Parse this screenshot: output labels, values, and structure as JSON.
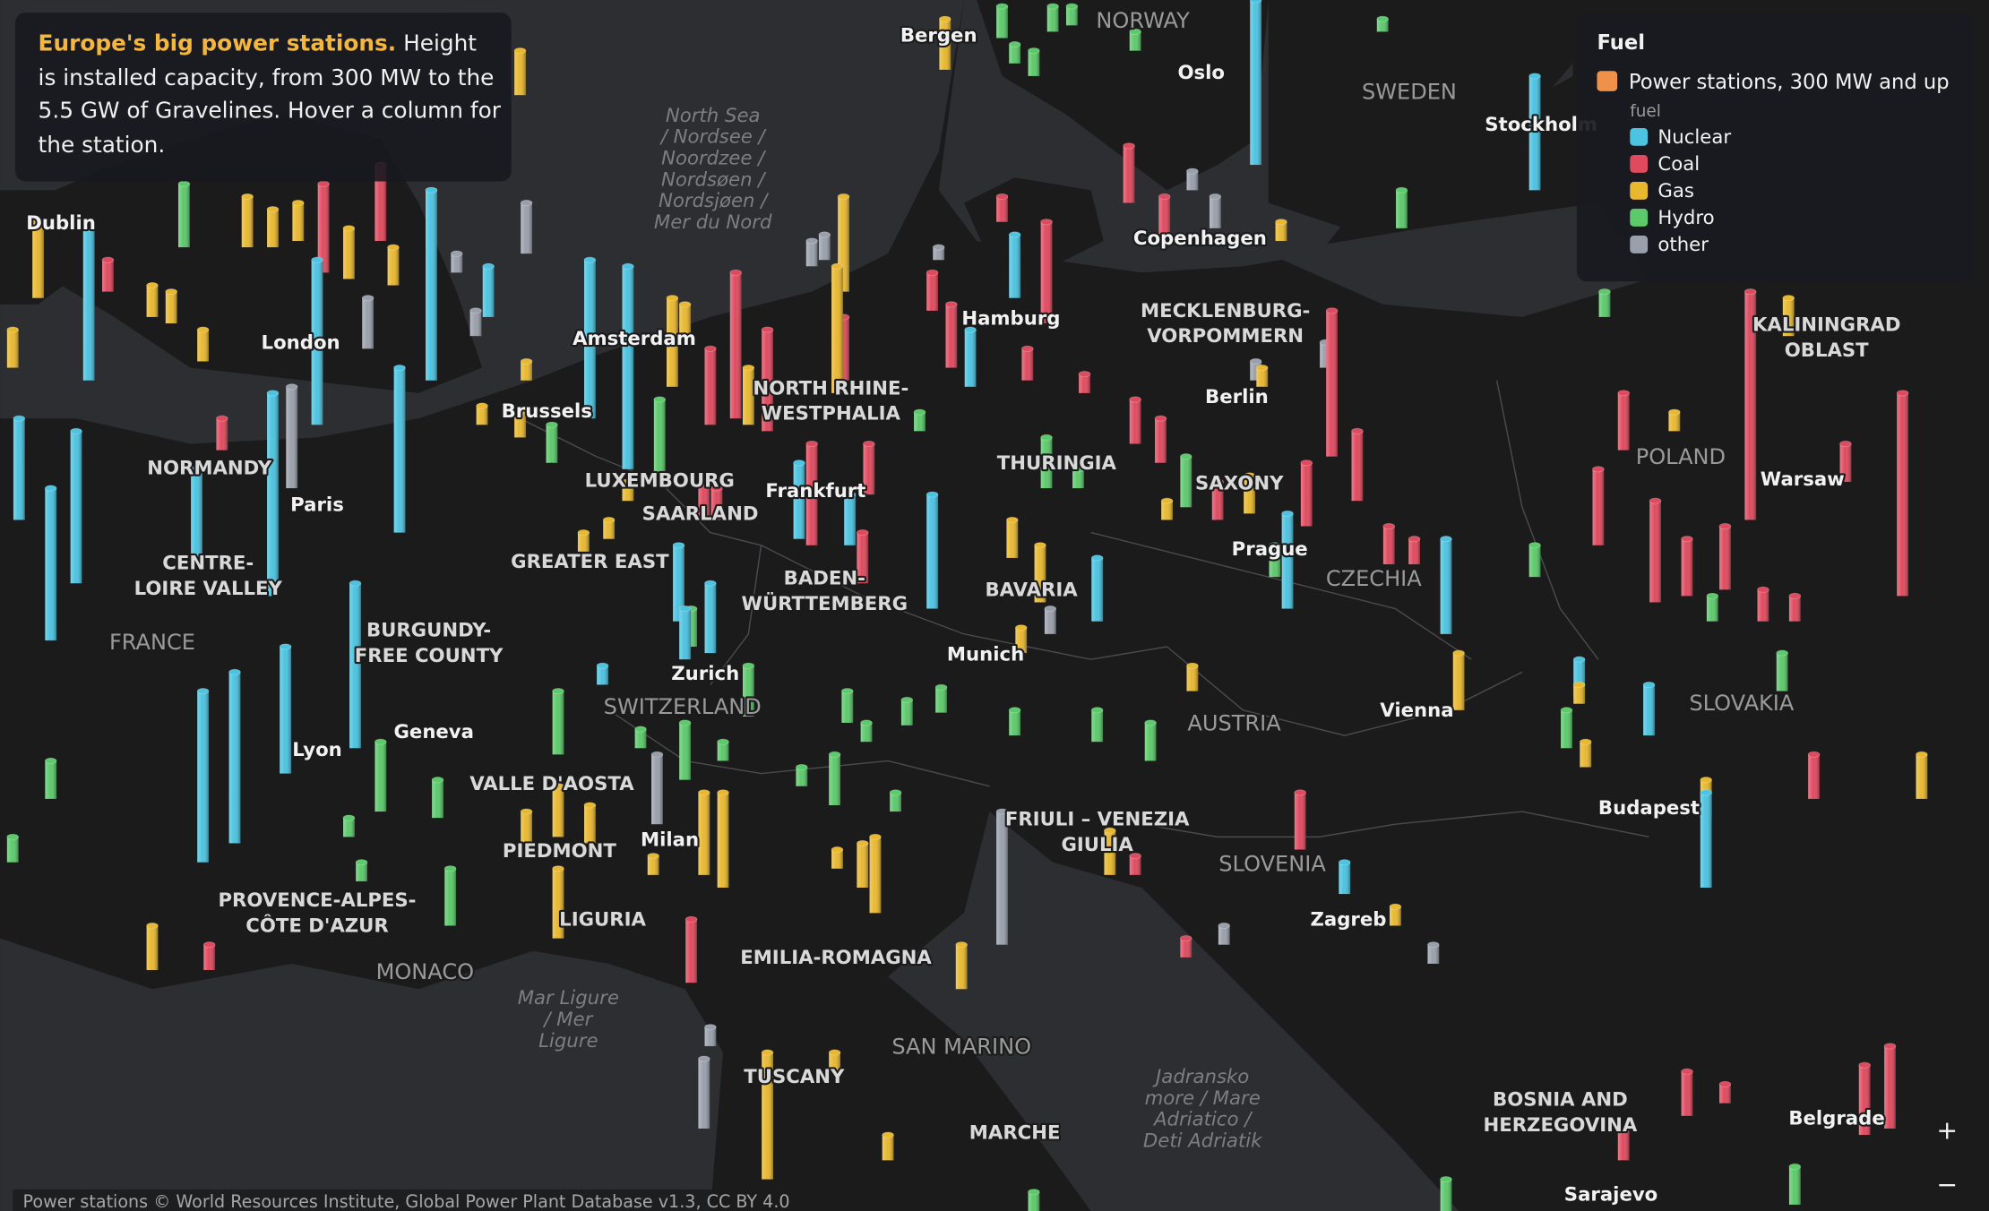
{
  "info": {
    "title": "Europe's big power stations.",
    "text": "Height is installed capacity, from 300 MW to the 5.5 GW of Gravelines. Hover a column for the station."
  },
  "legend": {
    "title": "Fuel",
    "layer": {
      "label": "Power stations, 300 MW and up",
      "color": "#f0914a"
    },
    "group": "fuel",
    "items": [
      {
        "label": "Nuclear",
        "color": "#4cc3e0"
      },
      {
        "label": "Coal",
        "color": "#e04a5f"
      },
      {
        "label": "Gas",
        "color": "#e8b830"
      },
      {
        "label": "Hydro",
        "color": "#5cc96b"
      },
      {
        "label": "other",
        "color": "#9aa0ab"
      }
    ]
  },
  "places": [
    {
      "label": "Bergen"
    },
    {
      "label": "Oslo"
    },
    {
      "label": "NORWAY"
    },
    {
      "label": "SWEDEN"
    },
    {
      "label": "Stockholm"
    },
    {
      "label": "Copenhagen"
    },
    {
      "label": "Hamburg"
    },
    {
      "lines": [
        "MECKLENBURG-",
        "VORPOMMERN"
      ]
    },
    {
      "label": "Berlin"
    },
    {
      "label": "Amsterdam"
    },
    {
      "label": "London"
    },
    {
      "label": "Dublin"
    },
    {
      "label": "Brussels"
    },
    {
      "lines": [
        "NORTH RHINE-",
        "WESTPHALIA"
      ]
    },
    {
      "label": "LUXEMBOURG"
    },
    {
      "label": "SAARLAND"
    },
    {
      "label": "Frankfurt"
    },
    {
      "label": "THURINGIA"
    },
    {
      "label": "SAXONY"
    },
    {
      "label": "Prague"
    },
    {
      "label": "CZECHIA"
    },
    {
      "label": "POLAND"
    },
    {
      "label": "Warsaw"
    },
    {
      "lines": [
        "KALININGRAD",
        "OBLAST"
      ]
    },
    {
      "label": "NORMANDY"
    },
    {
      "label": "Paris"
    },
    {
      "lines": [
        "CENTRE-",
        "LOIRE VALLEY"
      ]
    },
    {
      "label": "FRANCE"
    },
    {
      "label": "GREATER EAST"
    },
    {
      "lines": [
        "BADEN-",
        "WÜRTTEMBERG"
      ]
    },
    {
      "label": "BAVARIA"
    },
    {
      "label": "Munich"
    },
    {
      "label": "Zurich"
    },
    {
      "label": "SWITZERLAND"
    },
    {
      "lines": [
        "BURGUNDY-",
        "FREE COUNTY"
      ]
    },
    {
      "label": "Geneva"
    },
    {
      "label": "Lyon"
    },
    {
      "label": "AUSTRIA"
    },
    {
      "label": "Vienna"
    },
    {
      "label": "SLOVAKIA"
    },
    {
      "label": "Budapest"
    },
    {
      "label": "VALLE D'AOSTA"
    },
    {
      "label": "PIEDMONT"
    },
    {
      "label": "Milan"
    },
    {
      "label": "LIGURIA"
    },
    {
      "lines": [
        "FRIULI – VENEZIA",
        "GIULIA"
      ]
    },
    {
      "label": "SLOVENIA"
    },
    {
      "label": "Zagreb"
    },
    {
      "lines": [
        "PROVENCE-ALPES-",
        "CÔTE D'AZUR"
      ]
    },
    {
      "label": "MONACO"
    },
    {
      "label": "EMILIA-ROMAGNA"
    },
    {
      "label": "SAN MARINO"
    },
    {
      "label": "TUSCANY"
    },
    {
      "label": "MARCHE"
    },
    {
      "lines": [
        "BOSNIA AND",
        "HERZEGOVINA"
      ]
    },
    {
      "label": "Belgrade"
    },
    {
      "label": "Sarajevo"
    },
    {
      "lines": [
        "North Sea",
        "/ Nordsee /",
        "Noordzee /",
        "Nordsøen /",
        "Nordsjøen /",
        "Mer du Nord"
      ]
    },
    {
      "lines": [
        "Mar Ligure",
        "/ Mer",
        "Ligure"
      ]
    },
    {
      "lines": [
        "Jadransko",
        "more / Mare",
        "Adriatico /",
        "Deti Adriatik"
      ]
    }
  ],
  "attribution": "Power stations © World Resources Institute, Global Power Plant Database v1.3, CC BY 4.0",
  "zoom": {
    "in": "+",
    "out": "−"
  }
}
